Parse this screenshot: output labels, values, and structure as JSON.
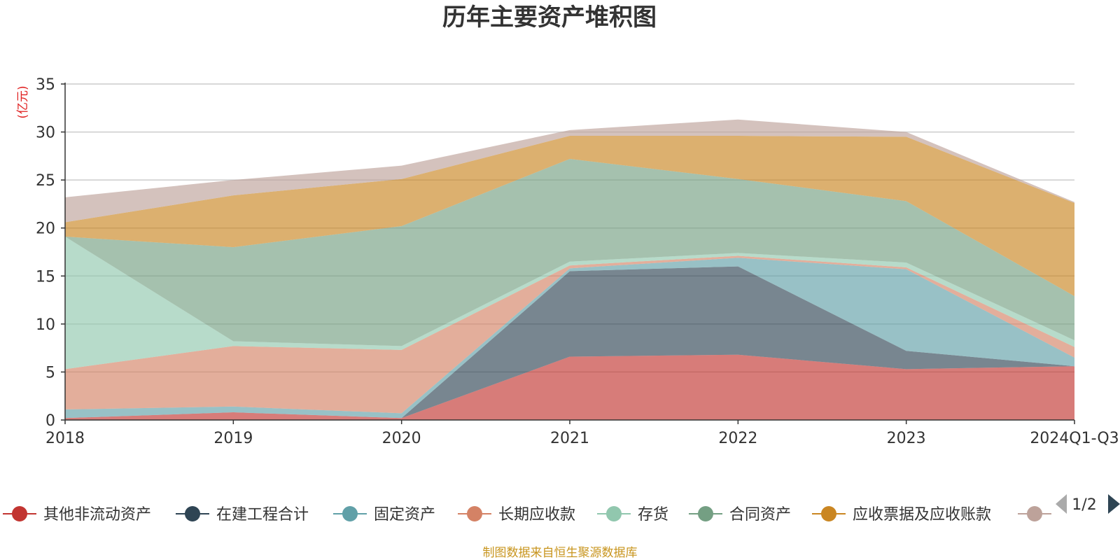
{
  "chart_data": {
    "type": "area",
    "stacked": true,
    "title": "历年主要资产堆积图",
    "ylabel": "(亿元)",
    "xlabel": "",
    "ylim": [
      0,
      35
    ],
    "yticks": [
      0,
      5,
      10,
      15,
      20,
      25,
      30,
      35
    ],
    "grid": true,
    "categories": [
      "2018",
      "2019",
      "2020",
      "2021",
      "2022",
      "2023",
      "2024Q1-Q3"
    ],
    "series": [
      {
        "name": "其他非流动资产",
        "color": "#c23531",
        "values": [
          0.2,
          0.8,
          0.2,
          6.6,
          6.8,
          5.3,
          5.6
        ]
      },
      {
        "name": "在建工程合计",
        "color": "#2f4554",
        "values": [
          0.0,
          0.0,
          0.0,
          8.9,
          9.2,
          1.9,
          0.0
        ]
      },
      {
        "name": "固定资产",
        "color": "#61a0a8",
        "values": [
          0.9,
          0.6,
          0.5,
          0.3,
          0.9,
          8.5,
          0.9
        ]
      },
      {
        "name": "长期应收款",
        "color": "#d48265",
        "values": [
          4.2,
          6.3,
          6.6,
          0.3,
          0.2,
          0.2,
          1.1
        ]
      },
      {
        "name": "存货",
        "color": "#91c7ae",
        "values": [
          13.8,
          0.5,
          0.4,
          0.4,
          0.3,
          0.5,
          0.7
        ]
      },
      {
        "name": "合同资产",
        "color": "#749f83",
        "values": [
          0.0,
          9.8,
          12.5,
          10.7,
          7.7,
          6.4,
          4.6
        ]
      },
      {
        "name": "应收票据及应收账款",
        "color": "#ca8622",
        "values": [
          1.5,
          5.4,
          4.9,
          2.4,
          4.5,
          6.7,
          9.7
        ]
      },
      {
        "name": "",
        "color": "#bda29a",
        "values": [
          2.6,
          1.6,
          1.4,
          0.6,
          1.7,
          0.5,
          0.1
        ]
      }
    ]
  },
  "legend": {
    "page": "1/2"
  },
  "source": "制图数据来自恒生聚源数据库"
}
